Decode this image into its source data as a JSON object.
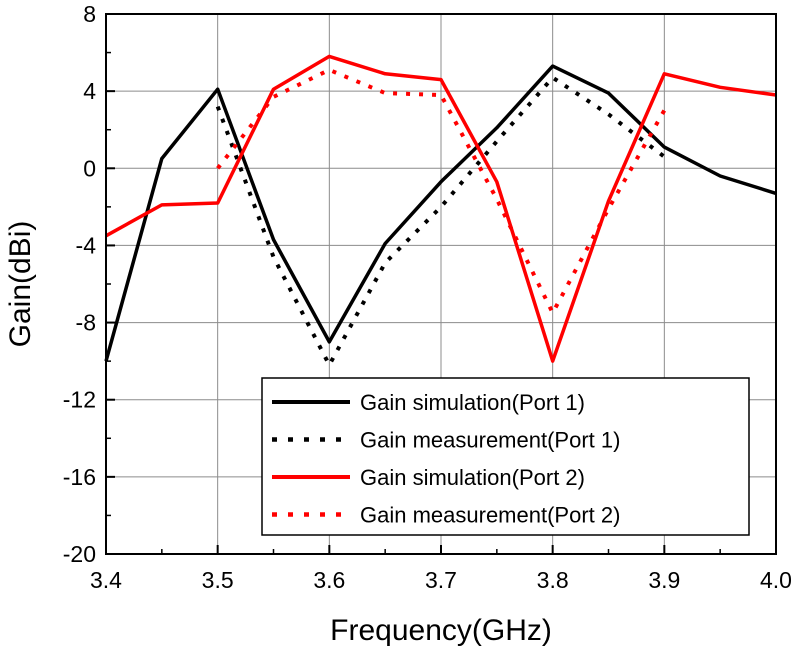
{
  "chart_data": {
    "type": "line",
    "title": "",
    "xlabel": "Frequency(GHz)",
    "ylabel": "Gain(dBi)",
    "xlim": [
      3.4,
      4.0
    ],
    "ylim": [
      -20,
      8
    ],
    "xticks": [
      3.4,
      3.5,
      3.6,
      3.7,
      3.8,
      3.9,
      4.0
    ],
    "xtick_labels": [
      "3.4",
      "3.5",
      "3.6",
      "3.7",
      "3.8",
      "3.9",
      "4.0"
    ],
    "yticks": [
      -20,
      -16,
      -12,
      -8,
      -4,
      0,
      4,
      8
    ],
    "ytick_labels": [
      "-20",
      "-16",
      "-12",
      "-8",
      "-4",
      "0",
      "4",
      "8"
    ],
    "grid": true,
    "legend_position": "bottom-right",
    "series": [
      {
        "name": "Gain simulation(Port 1)",
        "color": "#000000",
        "style": "solid",
        "x": [
          3.4,
          3.45,
          3.5,
          3.55,
          3.6,
          3.65,
          3.7,
          3.75,
          3.8,
          3.85,
          3.9,
          3.95,
          4.0
        ],
        "y": [
          -10.0,
          0.5,
          4.1,
          -3.7,
          -9.0,
          -3.9,
          -0.7,
          2.1,
          5.3,
          3.9,
          1.1,
          -0.4,
          -1.3
        ]
      },
      {
        "name": "Gain measurement(Port 1)",
        "color": "#000000",
        "style": "dotted",
        "x": [
          3.5,
          3.55,
          3.6,
          3.65,
          3.7,
          3.75,
          3.8,
          3.85,
          3.9
        ],
        "y": [
          3.2,
          -4.6,
          -10.2,
          -4.9,
          -2.0,
          1.4,
          4.7,
          2.8,
          0.6
        ]
      },
      {
        "name": "Gain simulation(Port 2)",
        "color": "#ff0000",
        "style": "solid",
        "x": [
          3.4,
          3.45,
          3.5,
          3.55,
          3.6,
          3.65,
          3.7,
          3.75,
          3.8,
          3.85,
          3.9,
          3.95,
          4.0
        ],
        "y": [
          -3.5,
          -1.9,
          -1.8,
          4.1,
          5.8,
          4.9,
          4.6,
          -0.7,
          -10.0,
          -1.7,
          4.9,
          4.2,
          3.8
        ]
      },
      {
        "name": "Gain measurement(Port 2)",
        "color": "#ff0000",
        "style": "dotted",
        "x": [
          3.5,
          3.55,
          3.6,
          3.65,
          3.7,
          3.75,
          3.8,
          3.85,
          3.9
        ],
        "y": [
          0.0,
          3.7,
          5.1,
          3.9,
          3.8,
          -1.6,
          -7.5,
          -2.1,
          3.0
        ]
      }
    ]
  }
}
